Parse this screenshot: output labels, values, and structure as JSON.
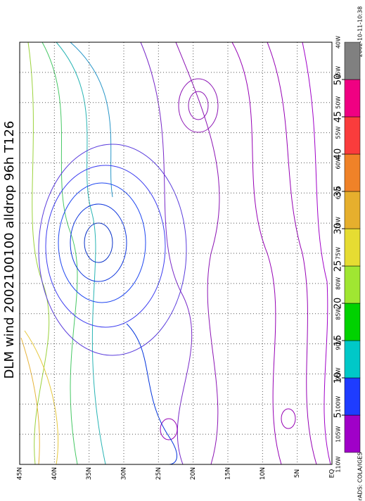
{
  "map": {
    "title": "DLM wind 2002100100 alldrop 96h T126",
    "timestamp": "2002-10-11-10:38",
    "credit": "GrADS: COLA/IGES",
    "lat_labels": [
      "45N",
      "40N",
      "35N",
      "30N",
      "25N",
      "20N",
      "15N",
      "10N",
      "5N",
      "EQ"
    ],
    "lon_labels": [
      "110W",
      "105W",
      "100W",
      "95W",
      "90W",
      "85W",
      "80W",
      "75W",
      "70W",
      "65W",
      "60W",
      "55W",
      "50W",
      "45W",
      "40W"
    ],
    "colorbar": {
      "levels": [
        5,
        10,
        15,
        20,
        25,
        30,
        35,
        40,
        45,
        50
      ],
      "colors": [
        "#a000c8",
        "#1e3cff",
        "#00c8c8",
        "#00d200",
        "#a0e632",
        "#e6dc32",
        "#e6af2d",
        "#f08228",
        "#fa3c3c",
        "#f00082",
        "#808080"
      ]
    }
  }
}
